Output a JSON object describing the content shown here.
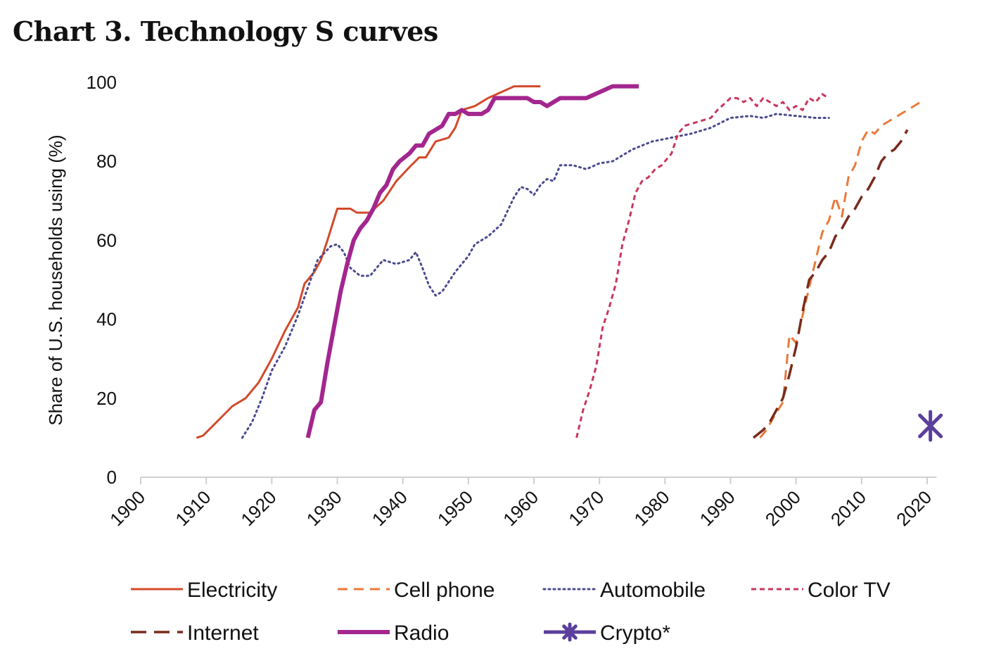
{
  "chart_data": {
    "type": "line",
    "title": "Chart 3. Technology S curves",
    "xlabel": "",
    "ylabel": "Share of U.S. households using (%)",
    "xlim": [
      1900,
      2021
    ],
    "ylim": [
      0,
      100
    ],
    "xticks": [
      1900,
      1910,
      1920,
      1930,
      1940,
      1950,
      1960,
      1970,
      1980,
      1990,
      2000,
      2010,
      2020
    ],
    "yticks": [
      0,
      20,
      40,
      60,
      80,
      100
    ],
    "grid": false,
    "legend_position": "bottom",
    "series": [
      {
        "name": "Electricity",
        "color": "#d24a2b",
        "style": "solid",
        "points": [
          [
            1908.5,
            10
          ],
          [
            1909.5,
            10.5
          ],
          [
            1911,
            13
          ],
          [
            1912.5,
            15.5
          ],
          [
            1914,
            18
          ],
          [
            1916,
            20
          ],
          [
            1918,
            24
          ],
          [
            1920,
            30
          ],
          [
            1922,
            37
          ],
          [
            1924,
            43
          ],
          [
            1925,
            49
          ],
          [
            1926.5,
            52
          ],
          [
            1927.5,
            55
          ],
          [
            1928.5,
            60
          ],
          [
            1930,
            68
          ],
          [
            1932,
            68
          ],
          [
            1933,
            67
          ],
          [
            1935,
            67
          ],
          [
            1937,
            70
          ],
          [
            1939,
            75
          ],
          [
            1941,
            78.5
          ],
          [
            1942.5,
            81
          ],
          [
            1943.5,
            81
          ],
          [
            1945,
            85
          ],
          [
            1947,
            86
          ],
          [
            1948,
            88.5
          ],
          [
            1949,
            93
          ],
          [
            1951,
            94
          ],
          [
            1953,
            96
          ],
          [
            1955,
            97.5
          ],
          [
            1957,
            99
          ],
          [
            1961,
            99
          ]
        ]
      },
      {
        "name": "Cell phone",
        "color": "#e9793a",
        "style": "dash",
        "points": [
          [
            1994.5,
            10
          ],
          [
            1995.5,
            12
          ],
          [
            1996.5,
            15
          ],
          [
            1998,
            19
          ],
          [
            1999,
            36
          ],
          [
            2000,
            34
          ],
          [
            2001,
            41
          ],
          [
            2002,
            48
          ],
          [
            2003,
            55
          ],
          [
            2004,
            62
          ],
          [
            2005,
            65
          ],
          [
            2006,
            71
          ],
          [
            2007,
            66
          ],
          [
            2008,
            76
          ],
          [
            2009,
            79
          ],
          [
            2010,
            85
          ],
          [
            2011,
            88
          ],
          [
            2012,
            87
          ],
          [
            2013,
            89
          ],
          [
            2015,
            91
          ],
          [
            2017,
            93
          ],
          [
            2019,
            95
          ]
        ]
      },
      {
        "name": "Automobile",
        "color": "#4a4a8f",
        "style": "dot",
        "points": [
          [
            1915.5,
            10
          ],
          [
            1917,
            14
          ],
          [
            1918.5,
            20
          ],
          [
            1920,
            27
          ],
          [
            1922,
            33
          ],
          [
            1924,
            41
          ],
          [
            1925.5,
            48
          ],
          [
            1927,
            55
          ],
          [
            1929,
            58.5
          ],
          [
            1930,
            59
          ],
          [
            1931,
            57
          ],
          [
            1932,
            53
          ],
          [
            1933.5,
            51
          ],
          [
            1935,
            51
          ],
          [
            1937,
            55
          ],
          [
            1939,
            54
          ],
          [
            1941,
            55
          ],
          [
            1942,
            57
          ],
          [
            1943,
            53
          ],
          [
            1944,
            48.5
          ],
          [
            1945,
            46
          ],
          [
            1946,
            47
          ],
          [
            1948,
            52
          ],
          [
            1950,
            56
          ],
          [
            1951,
            59
          ],
          [
            1953,
            61
          ],
          [
            1955,
            64
          ],
          [
            1957,
            71
          ],
          [
            1958,
            73.5
          ],
          [
            1959,
            73
          ],
          [
            1960,
            71.5
          ],
          [
            1961,
            74
          ],
          [
            1962,
            75.5
          ],
          [
            1963,
            75
          ],
          [
            1964,
            79
          ],
          [
            1966,
            79
          ],
          [
            1968,
            78
          ],
          [
            1970,
            79.5
          ],
          [
            1972,
            80
          ],
          [
            1975,
            83
          ],
          [
            1978,
            85
          ],
          [
            1981,
            86
          ],
          [
            1984,
            87
          ],
          [
            1987,
            88.5
          ],
          [
            1990,
            91
          ],
          [
            1993,
            91.5
          ],
          [
            1995,
            91
          ],
          [
            1997,
            92
          ],
          [
            2000,
            91.5
          ],
          [
            2003,
            91
          ],
          [
            2005,
            91
          ]
        ]
      },
      {
        "name": "Color TV",
        "color": "#c8375d",
        "style": "shortdash",
        "points": [
          [
            1966.5,
            10
          ],
          [
            1967.5,
            17
          ],
          [
            1968.5,
            22
          ],
          [
            1969.5,
            28
          ],
          [
            1970.5,
            38
          ],
          [
            1971.5,
            43
          ],
          [
            1972.5,
            49
          ],
          [
            1973.5,
            59
          ],
          [
            1974.5,
            65
          ],
          [
            1975.5,
            72
          ],
          [
            1976.5,
            75
          ],
          [
            1977.5,
            76
          ],
          [
            1978.5,
            78
          ],
          [
            1979.5,
            79
          ],
          [
            1981,
            82
          ],
          [
            1982,
            87
          ],
          [
            1983,
            89
          ],
          [
            1985,
            90
          ],
          [
            1987,
            91
          ],
          [
            1988,
            93
          ],
          [
            1990,
            96
          ],
          [
            1991,
            96
          ],
          [
            1992,
            95
          ],
          [
            1993,
            96
          ],
          [
            1994,
            94
          ],
          [
            1995,
            96
          ],
          [
            1996,
            95
          ],
          [
            1997,
            94
          ],
          [
            1998,
            95
          ],
          [
            1999,
            93
          ],
          [
            2000,
            94
          ],
          [
            2001,
            93
          ],
          [
            2002,
            96
          ],
          [
            2003,
            95
          ],
          [
            2004,
            97
          ],
          [
            2005,
            96
          ]
        ]
      },
      {
        "name": "Internet",
        "color": "#7a2a1c",
        "style": "longdash",
        "points": [
          [
            1993.5,
            10
          ],
          [
            1995,
            12
          ],
          [
            1996,
            14
          ],
          [
            1997,
            17
          ],
          [
            1998,
            20
          ],
          [
            1999,
            26
          ],
          [
            2000,
            33
          ],
          [
            2001,
            42
          ],
          [
            2002,
            50
          ],
          [
            2003,
            52
          ],
          [
            2004,
            55
          ],
          [
            2005,
            57
          ],
          [
            2006,
            61
          ],
          [
            2007,
            63
          ],
          [
            2008,
            66
          ],
          [
            2009,
            68
          ],
          [
            2010,
            71
          ],
          [
            2011,
            73
          ],
          [
            2012,
            76
          ],
          [
            2013,
            80
          ],
          [
            2014,
            82
          ],
          [
            2015,
            83
          ],
          [
            2016,
            85
          ],
          [
            2017,
            88
          ]
        ]
      },
      {
        "name": "Radio",
        "color": "#a3268f",
        "style": "thick",
        "points": [
          [
            1925.5,
            10
          ],
          [
            1926.5,
            17
          ],
          [
            1927.5,
            19
          ],
          [
            1928.5,
            29
          ],
          [
            1929.5,
            38
          ],
          [
            1930.5,
            47
          ],
          [
            1931.5,
            54
          ],
          [
            1932.5,
            60
          ],
          [
            1933.5,
            63
          ],
          [
            1934.5,
            65
          ],
          [
            1935.5,
            68
          ],
          [
            1936.5,
            72
          ],
          [
            1937.5,
            74
          ],
          [
            1938.5,
            78
          ],
          [
            1939.5,
            80
          ],
          [
            1941,
            82
          ],
          [
            1942,
            84
          ],
          [
            1943,
            84
          ],
          [
            1944,
            87
          ],
          [
            1945,
            88
          ],
          [
            1946,
            89
          ],
          [
            1947,
            92
          ],
          [
            1948,
            92
          ],
          [
            1949,
            93
          ],
          [
            1950,
            92
          ],
          [
            1951,
            92
          ],
          [
            1952,
            92
          ],
          [
            1953,
            93
          ],
          [
            1954,
            96
          ],
          [
            1955,
            96
          ],
          [
            1956,
            96
          ],
          [
            1957,
            96
          ],
          [
            1958,
            96
          ],
          [
            1959,
            96
          ],
          [
            1960,
            95
          ],
          [
            1961,
            95
          ],
          [
            1962,
            94
          ],
          [
            1963,
            95
          ],
          [
            1964,
            96
          ],
          [
            1966,
            96
          ],
          [
            1968,
            96
          ],
          [
            1970,
            97.5
          ],
          [
            1972,
            99
          ],
          [
            1974,
            99
          ],
          [
            1976,
            99
          ]
        ]
      },
      {
        "name": "Crypto*",
        "color": "#5b3f9c",
        "style": "marker",
        "points": [
          [
            2020.5,
            13
          ]
        ]
      }
    ]
  }
}
